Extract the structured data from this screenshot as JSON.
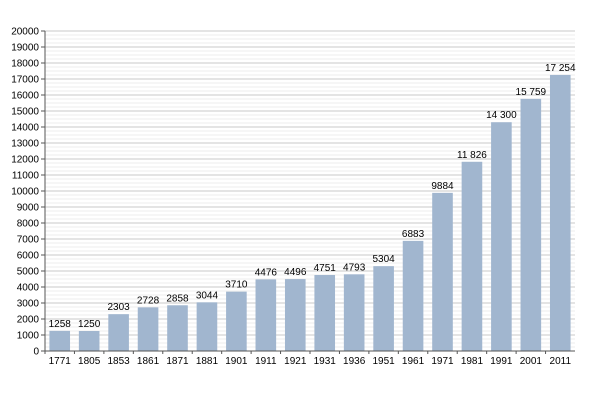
{
  "chart_data": {
    "type": "bar",
    "categories": [
      "1771",
      "1805",
      "1853",
      "1861",
      "1871",
      "1881",
      "1901",
      "1911",
      "1921",
      "1931",
      "1936",
      "1951",
      "1961",
      "1971",
      "1981",
      "1991",
      "2001",
      "2011"
    ],
    "values": [
      1258,
      1250,
      2303,
      2728,
      2858,
      3044,
      3710,
      4476,
      4496,
      4751,
      4793,
      5304,
      6883,
      9884,
      11826,
      14300,
      15759,
      17254
    ],
    "value_labels": [
      "1258",
      "1250",
      "2303",
      "2728",
      "2858",
      "3044",
      "3710",
      "4476",
      "4496",
      "4751",
      "4793",
      "5304",
      "6883",
      "9884",
      "11 826",
      "14 300",
      "15 759",
      "17 254"
    ],
    "y_ticks": [
      "0",
      "1000",
      "2000",
      "3000",
      "4000",
      "5000",
      "6000",
      "7000",
      "8000",
      "9000",
      "10000",
      "11000",
      "12000",
      "13000",
      "14000",
      "15000",
      "16000",
      "17000",
      "18000",
      "19000",
      "20000"
    ],
    "ylim": [
      0,
      20000
    ],
    "y_major_step": 1000,
    "y_minor_step": 250,
    "grid": true,
    "legend": "none",
    "title": "",
    "xlabel": "",
    "ylabel": "",
    "colors": {
      "bar": "#a1b6cf",
      "grid_major": "#b8b8b8",
      "grid_minor": "#dcdcdc",
      "axis": "#555555"
    }
  }
}
